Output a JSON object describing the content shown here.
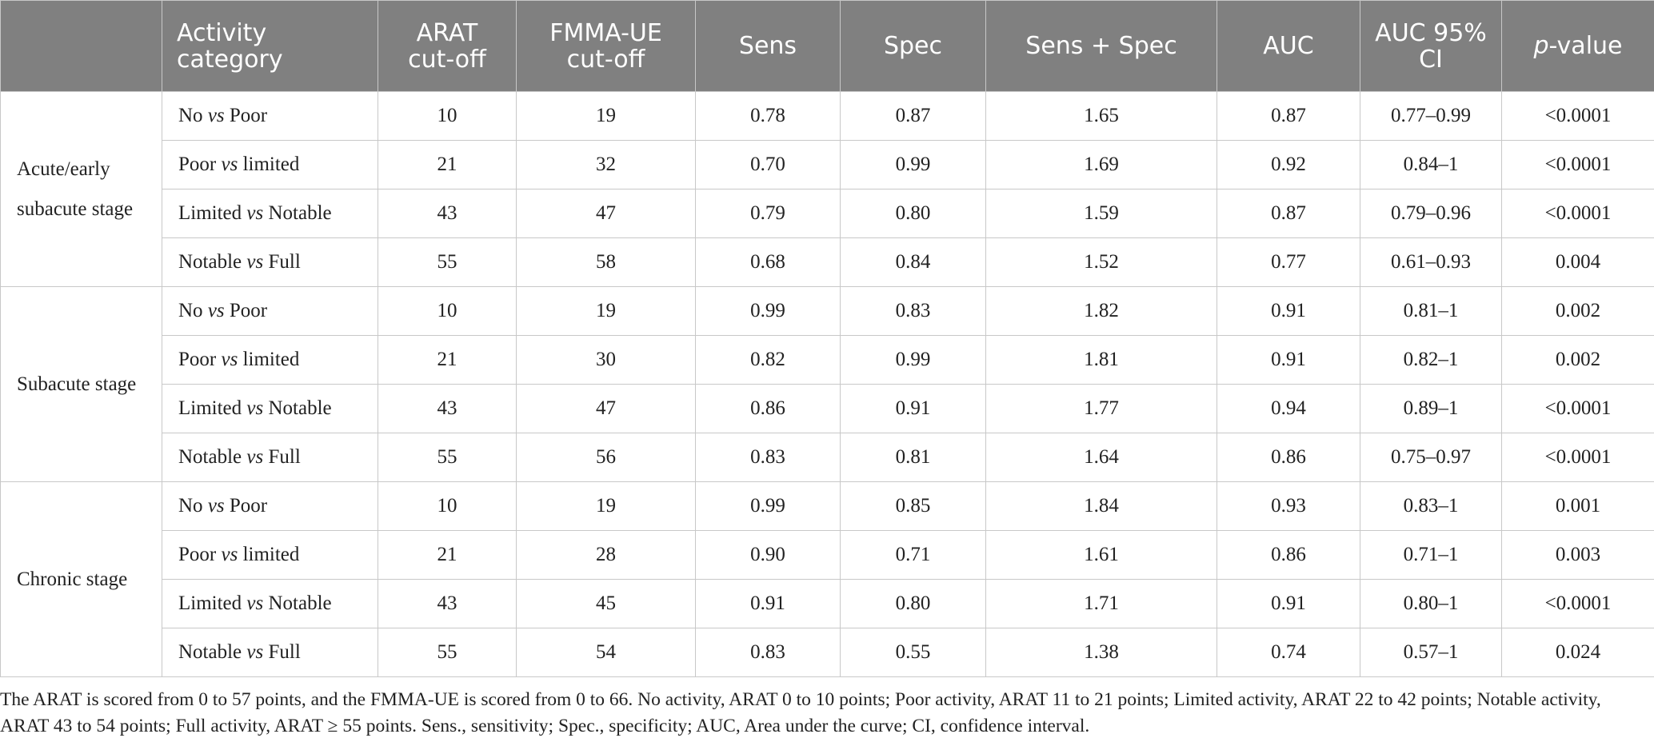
{
  "table": {
    "header": [
      "",
      "Activity category",
      "ARAT cut-off",
      "FMMA-UE cut-off",
      "Sens",
      "Spec",
      "Sens + Spec",
      "AUC",
      "AUC 95% CI",
      [
        "p",
        "-value"
      ]
    ],
    "groups": [
      {
        "stage": "Acute/early subacute stage",
        "rows": [
          {
            "comparison": [
              "No",
              "vs",
              "Poor"
            ],
            "cells": [
              "10",
              "19",
              "0.78",
              "0.87",
              "1.65",
              "0.87",
              "0.77–0.99",
              "<0.0001"
            ]
          },
          {
            "comparison": [
              "Poor",
              "vs",
              "limited"
            ],
            "cells": [
              "21",
              "32",
              "0.70",
              "0.99",
              "1.69",
              "0.92",
              "0.84–1",
              "<0.0001"
            ]
          },
          {
            "comparison": [
              "Limited",
              "vs",
              "Notable"
            ],
            "cells": [
              "43",
              "47",
              "0.79",
              "0.80",
              "1.59",
              "0.87",
              "0.79–0.96",
              "<0.0001"
            ]
          },
          {
            "comparison": [
              "Notable",
              "vs",
              "Full"
            ],
            "cells": [
              "55",
              "58",
              "0.68",
              "0.84",
              "1.52",
              "0.77",
              "0.61–0.93",
              "0.004"
            ]
          }
        ]
      },
      {
        "stage": "Subacute stage",
        "rows": [
          {
            "comparison": [
              "No",
              "vs",
              "Poor"
            ],
            "cells": [
              "10",
              "19",
              "0.99",
              "0.83",
              "1.82",
              "0.91",
              "0.81–1",
              "0.002"
            ]
          },
          {
            "comparison": [
              "Poor",
              "vs",
              "limited"
            ],
            "cells": [
              "21",
              "30",
              "0.82",
              "0.99",
              "1.81",
              "0.91",
              "0.82–1",
              "0.002"
            ]
          },
          {
            "comparison": [
              "Limited",
              "vs",
              "Notable"
            ],
            "cells": [
              "43",
              "47",
              "0.86",
              "0.91",
              "1.77",
              "0.94",
              "0.89–1",
              "<0.0001"
            ]
          },
          {
            "comparison": [
              "Notable",
              "vs",
              "Full"
            ],
            "cells": [
              "55",
              "56",
              "0.83",
              "0.81",
              "1.64",
              "0.86",
              "0.75–0.97",
              "<0.0001"
            ]
          }
        ]
      },
      {
        "stage": "Chronic stage",
        "rows": [
          {
            "comparison": [
              "No",
              "vs",
              "Poor"
            ],
            "cells": [
              "10",
              "19",
              "0.99",
              "0.85",
              "1.84",
              "0.93",
              "0.83–1",
              "0.001"
            ]
          },
          {
            "comparison": [
              "Poor",
              "vs",
              "limited"
            ],
            "cells": [
              "21",
              "28",
              "0.90",
              "0.71",
              "1.61",
              "0.86",
              "0.71–1",
              "0.003"
            ]
          },
          {
            "comparison": [
              "Limited",
              "vs",
              "Notable"
            ],
            "cells": [
              "43",
              "45",
              "0.91",
              "0.80",
              "1.71",
              "0.91",
              "0.80–1",
              "<0.0001"
            ]
          },
          {
            "comparison": [
              "Notable",
              "vs",
              "Full"
            ],
            "cells": [
              "55",
              "54",
              "0.83",
              "0.55",
              "1.38",
              "0.74",
              "0.57–1",
              "0.024"
            ]
          }
        ]
      }
    ]
  },
  "footnote": "The ARAT is scored from 0 to 57 points, and the FMMA-UE is scored from 0 to 66. No activity, ARAT 0 to 10 points; Poor activity, ARAT 11 to 21 points; Limited activity, ARAT 22 to 42 points; Notable activity, ARAT 43 to 54 points; Full activity, ARAT ≥ 55 points. Sens., sensitivity; Spec., specificity; AUC, Area under the curve; CI, confidence interval."
}
